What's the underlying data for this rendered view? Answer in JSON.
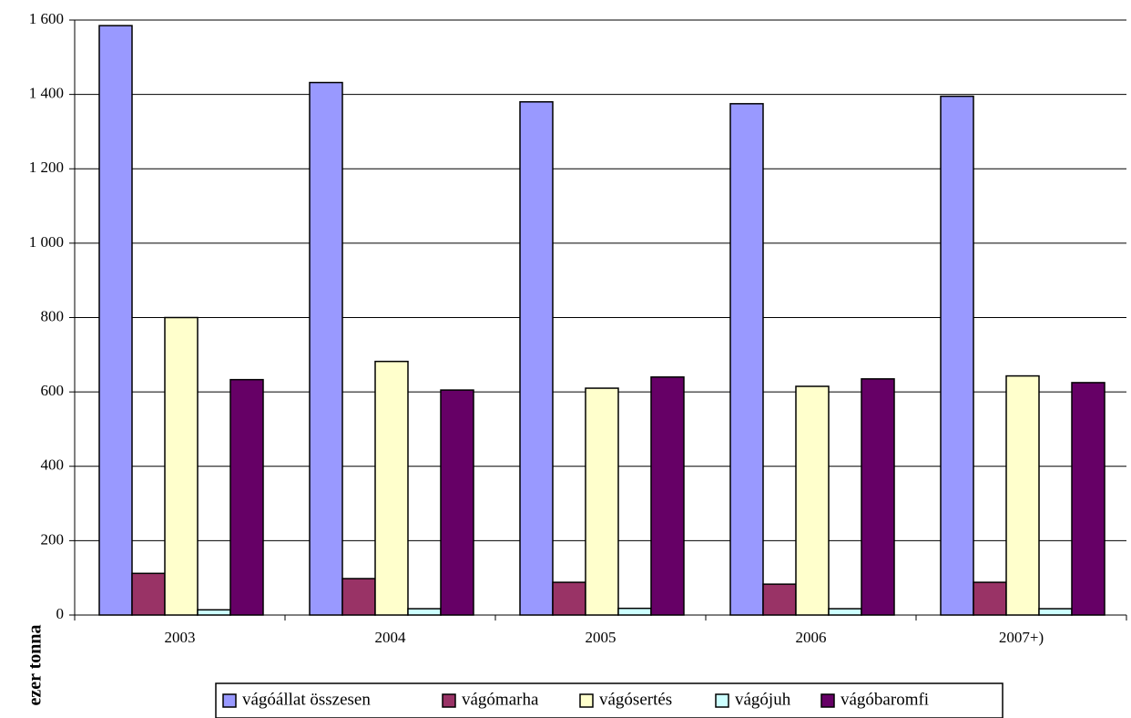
{
  "chart_data": {
    "type": "bar",
    "title": "",
    "xlabel": "",
    "ylabel": "ezer tonna",
    "ylim": [
      0,
      1600
    ],
    "yticks": [
      0,
      200,
      400,
      600,
      800,
      1000,
      1200,
      1400,
      1600
    ],
    "ytick_labels": [
      "0",
      "200",
      "400",
      "600",
      "800",
      "1 000",
      "1 200",
      "1 400",
      "1 600"
    ],
    "grid": true,
    "legend_position": "bottom",
    "categories": [
      "2003",
      "2004",
      "2005",
      "2006",
      "2007+)"
    ],
    "series": [
      {
        "name": "vágóállat összesen",
        "color": "#9999ff",
        "values": [
          1585,
          1432,
          1380,
          1375,
          1395
        ]
      },
      {
        "name": "vágómarha",
        "color": "#993366",
        "values": [
          112,
          98,
          88,
          83,
          88
        ]
      },
      {
        "name": "vágósertés",
        "color": "#ffffcc",
        "values": [
          800,
          682,
          610,
          615,
          643
        ]
      },
      {
        "name": "vágójuh",
        "color": "#ccffff",
        "values": [
          14,
          17,
          18,
          17,
          17
        ]
      },
      {
        "name": "vágóbaromfi",
        "color": "#660066",
        "values": [
          633,
          605,
          640,
          635,
          625
        ]
      }
    ]
  }
}
